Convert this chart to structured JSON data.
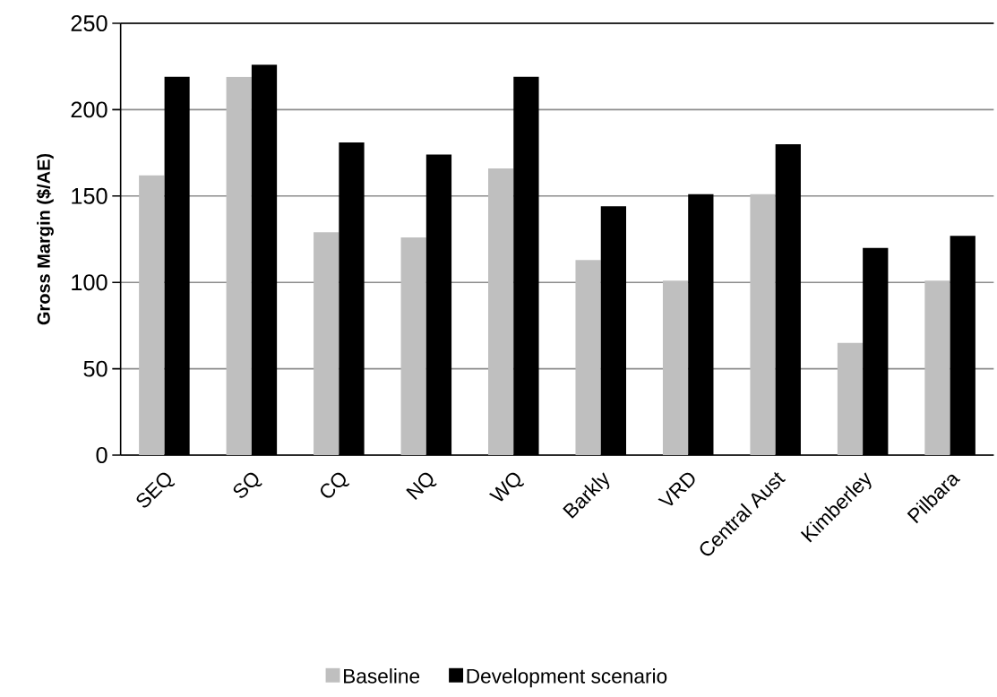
{
  "chart_data": {
    "type": "bar",
    "ylabel": "**Gross Margin  ($/AE)**",
    "categories": [
      "SEQ",
      "SQ",
      "CQ",
      "NQ",
      "WQ",
      "Barkly",
      "VRD",
      "Central Aust",
      "Kimberley",
      "Pilbara"
    ],
    "series": [
      {
        "name": "Baseline",
        "color": "#bfbfbf",
        "values": [
          162,
          219,
          129,
          126,
          166,
          113,
          101,
          151,
          65,
          101
        ]
      },
      {
        "name": "Development scenario",
        "color": "#000000",
        "values": [
          219,
          226,
          181,
          174,
          219,
          144,
          151,
          180,
          120,
          127
        ]
      }
    ],
    "ylim": [
      0,
      250
    ],
    "yticks": [
      0,
      50,
      100,
      150,
      200,
      250
    ],
    "grid": "y",
    "legend": "bottom"
  }
}
